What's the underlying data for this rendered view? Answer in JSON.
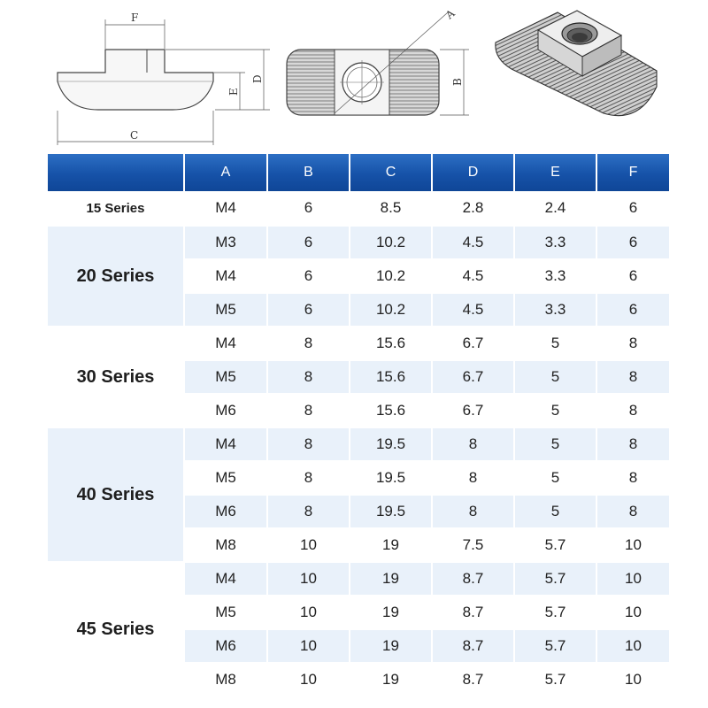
{
  "figures": {
    "side_view": {
      "labels": {
        "f": "F",
        "d": "D",
        "e": "E",
        "c": "C"
      }
    },
    "top_view": {
      "labels": {
        "a": "A",
        "b": "B"
      }
    },
    "iso_view": {
      "caption": ""
    }
  },
  "table": {
    "headers": [
      "",
      "A",
      "B",
      "C",
      "D",
      "E",
      "F"
    ],
    "groups": [
      {
        "series": "15 Series",
        "rows": [
          [
            "M4",
            "6",
            "8.5",
            "2.8",
            "2.4",
            "6"
          ]
        ]
      },
      {
        "series": "20 Series",
        "rows": [
          [
            "M3",
            "6",
            "10.2",
            "4.5",
            "3.3",
            "6"
          ],
          [
            "M4",
            "6",
            "10.2",
            "4.5",
            "3.3",
            "6"
          ],
          [
            "M5",
            "6",
            "10.2",
            "4.5",
            "3.3",
            "6"
          ]
        ]
      },
      {
        "series": "30 Series",
        "rows": [
          [
            "M4",
            "8",
            "15.6",
            "6.7",
            "5",
            "8"
          ],
          [
            "M5",
            "8",
            "15.6",
            "6.7",
            "5",
            "8"
          ],
          [
            "M6",
            "8",
            "15.6",
            "6.7",
            "5",
            "8"
          ]
        ]
      },
      {
        "series": "40 Series",
        "rows": [
          [
            "M4",
            "8",
            "19.5",
            "8",
            "5",
            "8"
          ],
          [
            "M5",
            "8",
            "19.5",
            "8",
            "5",
            "8"
          ],
          [
            "M6",
            "8",
            "19.5",
            "8",
            "5",
            "8"
          ],
          [
            "M8",
            "10",
            "19",
            "7.5",
            "5.7",
            "10"
          ]
        ]
      },
      {
        "series": "45 Series",
        "rows": [
          [
            "M4",
            "10",
            "19",
            "8.7",
            "5.7",
            "10"
          ],
          [
            "M5",
            "10",
            "19",
            "8.7",
            "5.7",
            "10"
          ],
          [
            "M6",
            "10",
            "19",
            "8.7",
            "5.7",
            "10"
          ],
          [
            "M8",
            "10",
            "19",
            "8.7",
            "5.7",
            "10"
          ]
        ]
      }
    ]
  },
  "colors": {
    "header_blue": "#1652a8",
    "row_shade": "#e9f1fa",
    "header_text": "#ffffff"
  }
}
